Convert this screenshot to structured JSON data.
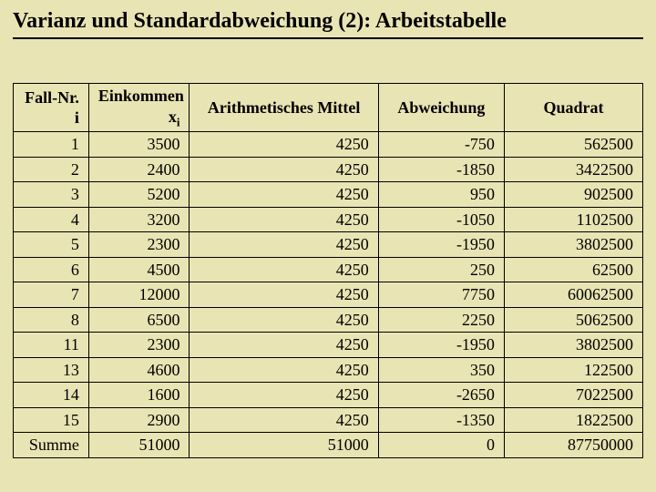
{
  "title": "Varianz und Standardabweichung (2): Arbeitstabelle",
  "table": {
    "columns": [
      {
        "label_html": "Fall-Nr.<br>i",
        "align": "right",
        "width": "12%"
      },
      {
        "label_html": "Einkommen<br>x<span class=\"sub\">i</span>",
        "align": "right",
        "width": "16%"
      },
      {
        "label_html": "Arithmetisches Mittel",
        "align": "center",
        "width": "30%"
      },
      {
        "label_html": "Abweichung",
        "align": "center",
        "width": "20%"
      },
      {
        "label_html": "Quadrat",
        "align": "center",
        "width": "22%"
      }
    ],
    "rows": [
      [
        "1",
        "3500",
        "4250",
        "-750",
        "562500"
      ],
      [
        "2",
        "2400",
        "4250",
        "-1850",
        "3422500"
      ],
      [
        "3",
        "5200",
        "4250",
        "950",
        "902500"
      ],
      [
        "4",
        "3200",
        "4250",
        "-1050",
        "1102500"
      ],
      [
        "5",
        "2300",
        "4250",
        "-1950",
        "3802500"
      ],
      [
        "6",
        "4500",
        "4250",
        "250",
        "62500"
      ],
      [
        "7",
        "12000",
        "4250",
        "7750",
        "60062500"
      ],
      [
        "8",
        "6500",
        "4250",
        "2250",
        "5062500"
      ],
      [
        "11",
        "2300",
        "4250",
        "-1950",
        "3802500"
      ],
      [
        "13",
        "4600",
        "4250",
        "350",
        "122500"
      ],
      [
        "14",
        "1600",
        "4250",
        "-2650",
        "7022500"
      ],
      [
        "15",
        "2900",
        "4250",
        "-1350",
        "1822500"
      ],
      [
        "Summe",
        "51000",
        "51000",
        "0",
        "87750000"
      ]
    ]
  },
  "style": {
    "background_color": "#e9e4b4",
    "text_color": "#000000",
    "border_color": "#000000",
    "title_fontsize": 24,
    "cell_fontsize": 18,
    "font_family": "Times New Roman"
  }
}
